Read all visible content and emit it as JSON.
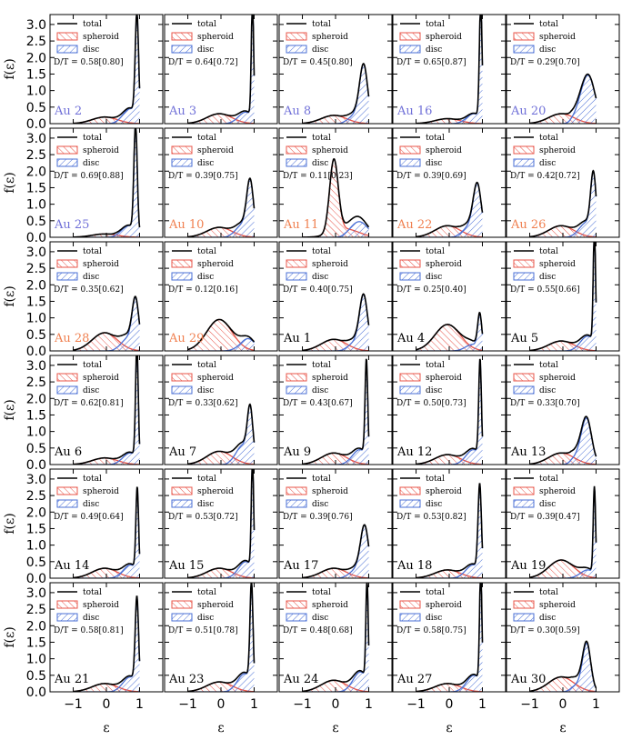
{
  "chart_data": {
    "type": "line",
    "layout": "6x5 grid",
    "xlabel": "ε",
    "ylabel": "f(ε)",
    "xlim": [
      -1.7,
      1.7
    ],
    "ylim": [
      0,
      3.3
    ],
    "xticks": [
      -1,
      0,
      1
    ],
    "xtick_labels": [
      "−1",
      "0",
      "1"
    ],
    "yticks": [
      0.0,
      0.5,
      1.0,
      1.5,
      2.0,
      2.5,
      3.0
    ],
    "ytick_labels": [
      "0.0",
      "0.5",
      "1.0",
      "1.5",
      "2.0",
      "2.5",
      "3.0"
    ],
    "legend": [
      {
        "label": "total",
        "style": "line",
        "color": "#000000"
      },
      {
        "label": "spheroid",
        "style": "hatched",
        "color": "#e8554a"
      },
      {
        "label": "disc",
        "style": "hatched",
        "color": "#4a6fd6"
      }
    ],
    "colors": {
      "spheroid": "#e8554a",
      "disc": "#4a6fd6",
      "total": "#000000",
      "label_highlight_blue": "#7070d8",
      "label_highlight_red": "#f08050",
      "label_default": "#000000"
    },
    "panels": [
      {
        "name": "Au 2",
        "dt": "D/T = 0.58[0.80]",
        "label_color": "#7070d8",
        "disc_peak": 3.1,
        "disc_center": 0.92,
        "disc_width": 0.05,
        "disc_shoulder": 0.45,
        "sph_peak": 0.2
      },
      {
        "name": "Au 3",
        "dt": "D/T = 0.64[0.72]",
        "label_color": "#7070d8",
        "disc_peak": 3.5,
        "disc_center": 0.95,
        "disc_width": 0.035,
        "disc_shoulder": 0.35,
        "sph_peak": 0.3
      },
      {
        "name": "Au 8",
        "dt": "D/T = 0.45[0.80]",
        "label_color": "#7070d8",
        "disc_peak": 1.6,
        "disc_center": 0.85,
        "disc_width": 0.12,
        "disc_shoulder": 0.3,
        "sph_peak": 0.25
      },
      {
        "name": "Au 16",
        "dt": "D/T = 0.65[0.87]",
        "label_color": "#7070d8",
        "disc_peak": 3.5,
        "disc_center": 0.95,
        "disc_width": 0.04,
        "disc_shoulder": 0.3,
        "sph_peak": 0.15
      },
      {
        "name": "Au 20",
        "dt": "D/T = 0.29[0.70]",
        "label_color": "#7070d8",
        "disc_peak": 1.1,
        "disc_center": 0.8,
        "disc_width": 0.2,
        "disc_shoulder": 0.5,
        "sph_peak": 0.3
      },
      {
        "name": "Au 25",
        "dt": "D/T = 0.69[0.88]",
        "label_color": "#7070d8",
        "disc_peak": 3.2,
        "disc_center": 0.88,
        "disc_width": 0.05,
        "disc_shoulder": 0.35,
        "sph_peak": 0.1
      },
      {
        "name": "Au 10",
        "dt": "D/T = 0.39[0.75]",
        "label_color": "#f08050",
        "disc_peak": 1.5,
        "disc_center": 0.88,
        "disc_width": 0.1,
        "disc_shoulder": 0.4,
        "sph_peak": 0.3
      },
      {
        "name": "Au 11",
        "dt": "D/T = 0.11[0.23]",
        "label_color": "#f08050",
        "disc_peak": 0.4,
        "disc_center": 0.75,
        "disc_width": 0.25,
        "disc_shoulder": 0.1,
        "sph_peak": 2.2
      },
      {
        "name": "Au 22",
        "dt": "D/T = 0.39[0.69]",
        "label_color": "#f08050",
        "disc_peak": 1.4,
        "disc_center": 0.85,
        "disc_width": 0.12,
        "disc_shoulder": 0.35,
        "sph_peak": 0.35
      },
      {
        "name": "Au 26",
        "dt": "D/T = 0.42[0.72]",
        "label_color": "#f08050",
        "disc_peak": 1.7,
        "disc_center": 0.92,
        "disc_width": 0.08,
        "disc_shoulder": 0.45,
        "sph_peak": 0.35
      },
      {
        "name": "Au 28",
        "dt": "D/T = 0.35[0.62]",
        "label_color": "#f08050",
        "disc_peak": 1.35,
        "disc_center": 0.88,
        "disc_width": 0.1,
        "disc_shoulder": 0.4,
        "sph_peak": 0.55
      },
      {
        "name": "Au 29",
        "dt": "D/T = 0.12[0.16]",
        "label_color": "#f08050",
        "disc_peak": 0.3,
        "disc_center": 0.85,
        "disc_width": 0.2,
        "disc_shoulder": 0.1,
        "sph_peak": 0.95
      },
      {
        "name": "Au 1",
        "dt": "D/T = 0.40[0.75]",
        "label_color": "#000000",
        "disc_peak": 1.5,
        "disc_center": 0.85,
        "disc_width": 0.12,
        "disc_shoulder": 0.3,
        "sph_peak": 0.35
      },
      {
        "name": "Au 4",
        "dt": "D/T = 0.25[0.40]",
        "label_color": "#000000",
        "disc_peak": 1.0,
        "disc_center": 0.92,
        "disc_width": 0.06,
        "disc_shoulder": 0.2,
        "sph_peak": 0.8
      },
      {
        "name": "Au 5",
        "dt": "D/T = 0.55[0.66]",
        "label_color": "#000000",
        "disc_peak": 3.4,
        "disc_center": 0.95,
        "disc_width": 0.035,
        "disc_shoulder": 0.45,
        "sph_peak": 0.3
      },
      {
        "name": "Au 6",
        "dt": "D/T = 0.62[0.81]",
        "label_color": "#000000",
        "disc_peak": 3.4,
        "disc_center": 0.92,
        "disc_width": 0.04,
        "disc_shoulder": 0.35,
        "sph_peak": 0.2
      },
      {
        "name": "Au 7",
        "dt": "D/T = 0.33[0.62]",
        "label_color": "#000000",
        "disc_peak": 1.4,
        "disc_center": 0.88,
        "disc_width": 0.08,
        "disc_shoulder": 0.6,
        "sph_peak": 0.4
      },
      {
        "name": "Au 9",
        "dt": "D/T = 0.43[0.67]",
        "label_color": "#000000",
        "disc_peak": 2.9,
        "disc_center": 0.93,
        "disc_width": 0.04,
        "disc_shoulder": 0.45,
        "sph_peak": 0.35
      },
      {
        "name": "Au 12",
        "dt": "D/T = 0.50[0.73]",
        "label_color": "#000000",
        "disc_peak": 2.9,
        "disc_center": 0.93,
        "disc_width": 0.04,
        "disc_shoulder": 0.45,
        "sph_peak": 0.3
      },
      {
        "name": "Au 13",
        "dt": "D/T = 0.33[0.70]",
        "label_color": "#000000",
        "disc_peak": 1.2,
        "disc_center": 0.72,
        "disc_width": 0.15,
        "disc_shoulder": 0.3,
        "sph_peak": 0.35
      },
      {
        "name": "Au 14",
        "dt": "D/T = 0.49[0.64]",
        "label_color": "#000000",
        "disc_peak": 2.5,
        "disc_center": 0.93,
        "disc_width": 0.04,
        "disc_shoulder": 0.4,
        "sph_peak": 0.3
      },
      {
        "name": "Au 15",
        "dt": "D/T = 0.53[0.72]",
        "label_color": "#000000",
        "disc_peak": 3.3,
        "disc_center": 0.95,
        "disc_width": 0.035,
        "disc_shoulder": 0.5,
        "sph_peak": 0.3
      },
      {
        "name": "Au 17",
        "dt": "D/T = 0.39[0.76]",
        "label_color": "#000000",
        "disc_peak": 1.4,
        "disc_center": 0.88,
        "disc_width": 0.12,
        "disc_shoulder": 0.3,
        "sph_peak": 0.3
      },
      {
        "name": "Au 18",
        "dt": "D/T = 0.53[0.82]",
        "label_color": "#000000",
        "disc_peak": 2.6,
        "disc_center": 0.92,
        "disc_width": 0.05,
        "disc_shoulder": 0.4,
        "sph_peak": 0.25
      },
      {
        "name": "Au 19",
        "dt": "D/T = 0.39[0.47]",
        "label_color": "#000000",
        "disc_peak": 2.6,
        "disc_center": 0.95,
        "disc_width": 0.035,
        "disc_shoulder": 0.25,
        "sph_peak": 0.55
      },
      {
        "name": "Au 21",
        "dt": "D/T = 0.58[0.81]",
        "label_color": "#000000",
        "disc_peak": 2.6,
        "disc_center": 0.92,
        "disc_width": 0.05,
        "disc_shoulder": 0.45,
        "sph_peak": 0.25
      },
      {
        "name": "Au 23",
        "dt": "D/T = 0.51[0.78]",
        "label_color": "#000000",
        "disc_peak": 3.0,
        "disc_center": 0.92,
        "disc_width": 0.045,
        "disc_shoulder": 0.55,
        "sph_peak": 0.3
      },
      {
        "name": "Au 24",
        "dt": "D/T = 0.48[0.68]",
        "label_color": "#000000",
        "disc_peak": 3.0,
        "disc_center": 0.95,
        "disc_width": 0.035,
        "disc_shoulder": 0.6,
        "sph_peak": 0.35
      },
      {
        "name": "Au 27",
        "dt": "D/T = 0.58[0.75]",
        "label_color": "#000000",
        "disc_peak": 3.4,
        "disc_center": 0.95,
        "disc_width": 0.035,
        "disc_shoulder": 0.5,
        "sph_peak": 0.25
      },
      {
        "name": "Au 30",
        "dt": "D/T = 0.30[0.59]",
        "label_color": "#000000",
        "disc_peak": 1.3,
        "disc_center": 0.72,
        "disc_width": 0.12,
        "disc_shoulder": 0.25,
        "sph_peak": 0.45
      }
    ]
  }
}
